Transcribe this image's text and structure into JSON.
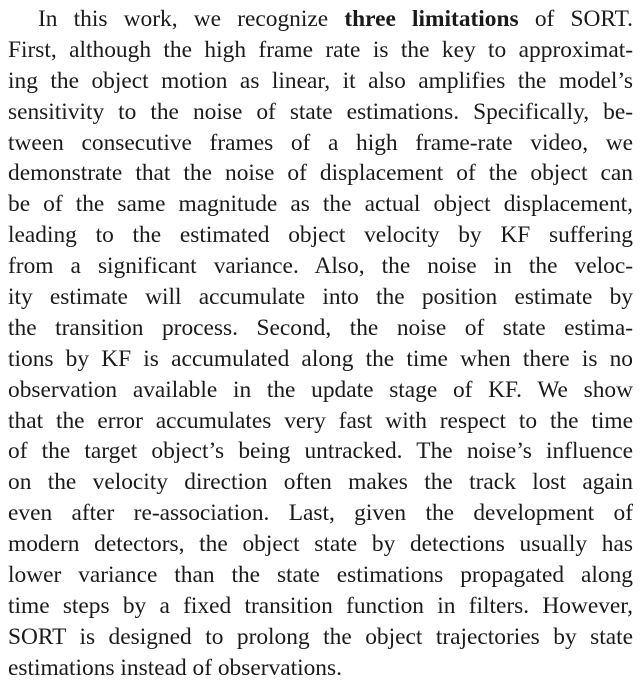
{
  "paragraph": {
    "lines": [
      "In this work, we recognize ",
      "First, although the high frame rate is the key to approximat-",
      "ing the object motion as linear, it also amplifies the model’s",
      "sensitivity to the noise of state estimations. Specifically, be-",
      "tween consecutive frames of a high frame-rate video, we",
      "demonstrate that the noise of displacement of the object can",
      "be of the same magnitude as the actual object displacement,",
      "leading to the estimated object velocity by KF suffering",
      "from a significant variance.  Also, the noise in the veloc-",
      "ity estimate will accumulate into the position estimate by",
      "the transition process.  Second, the noise of state estima-",
      "tions by KF is accumulated along the time when there is no",
      "observation available in the update stage of KF. We show",
      "that the error accumulates very fast with respect to the time",
      "of the target object’s being untracked. The noise’s influence",
      "on the velocity direction often makes the track lost again",
      "even after re-association.  Last, given the development of",
      "modern detectors, the object state by detections usually has",
      "lower variance than the state estimations propagated along",
      "time steps by a fixed transition function in filters. However,",
      "SORT is designed to prolong the object trajectories by state",
      "estimations instead of observations."
    ],
    "bold_phrase": "three limitations",
    "first_line_tail": " of SORT."
  }
}
